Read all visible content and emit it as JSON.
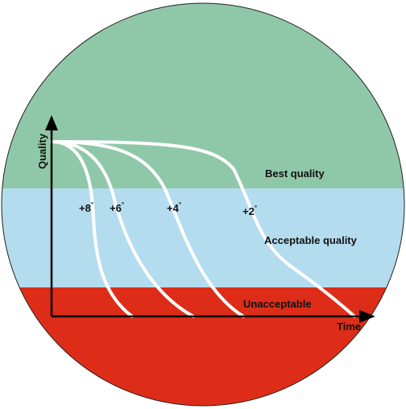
{
  "zones": {
    "best": {
      "label": "Best quality",
      "color": "#8fc8a8"
    },
    "acceptable": {
      "label": "Acceptable quality",
      "color": "#b4dcef"
    },
    "unacceptable": {
      "label": "Unacceptable",
      "color": "#dd2d19"
    }
  },
  "axes": {
    "x_label": "Time",
    "y_label": "Quality"
  },
  "curves": [
    {
      "label": "+8",
      "unit": "°"
    },
    {
      "label": "+6",
      "unit": "°"
    },
    {
      "label": "+4",
      "unit": "°"
    },
    {
      "label": "+2",
      "unit": "°"
    }
  ],
  "colors": {
    "curve": "#ffffff",
    "axis": "#000000",
    "outline": "#222222"
  }
}
